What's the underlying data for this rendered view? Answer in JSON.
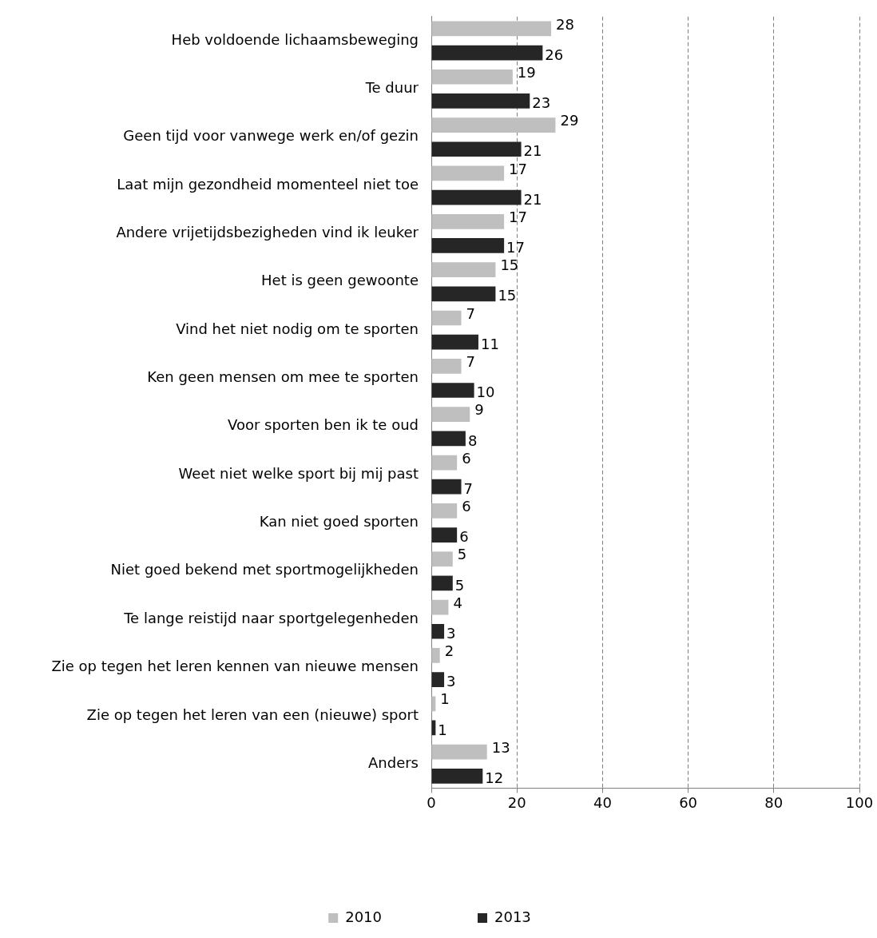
{
  "chart_data": {
    "type": "bar",
    "orientation": "horizontal",
    "categories": [
      "Heb voldoende lichaamsbeweging",
      "Te duur",
      "Geen tijd voor vanwege werk en/of gezin",
      "Laat mijn gezondheid momenteel niet toe",
      "Andere vrijetijdsbezigheden vind ik leuker",
      "Het is geen gewoonte",
      "Vind het niet nodig om te sporten",
      "Ken geen mensen om mee te sporten",
      "Voor sporten ben ik te oud",
      "Weet niet welke sport bij mij past",
      "Kan niet goed sporten",
      "Niet goed bekend met sportmogelijkheden",
      "Te lange reistijd naar sportgelegenheden",
      "Zie op tegen het leren kennen van nieuwe mensen",
      "Zie op tegen het leren van een (nieuwe) sport",
      "Anders"
    ],
    "series": [
      {
        "name": "2010",
        "color": "#bfbfbf",
        "values": [
          28,
          19,
          29,
          17,
          17,
          15,
          7,
          7,
          9,
          6,
          6,
          5,
          4,
          2,
          1,
          13
        ]
      },
      {
        "name": "2013",
        "color": "#262626",
        "values": [
          26,
          23,
          21,
          21,
          17,
          15,
          11,
          10,
          8,
          7,
          6,
          5,
          3,
          3,
          1,
          12
        ]
      }
    ],
    "xlim": [
      0,
      100
    ],
    "xticks": [
      0,
      20,
      40,
      60,
      80,
      100
    ],
    "grid": "x",
    "legend": "bottom",
    "data_labels": true
  }
}
